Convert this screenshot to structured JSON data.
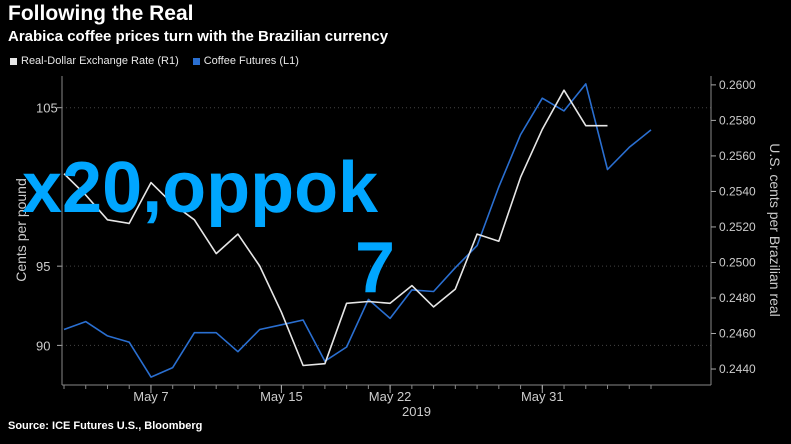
{
  "header": {
    "title": "Following the Real",
    "subtitle": "Arabica coffee prices turn with the Brazilian currency"
  },
  "legend": [
    {
      "label": "Real-Dollar Exchange Rate (R1)",
      "color": "#e6e6e6"
    },
    {
      "label": "Coffee Futures (L1)",
      "color": "#2a6fd1"
    }
  ],
  "source": "Source: ICE Futures U.S., Bloomberg",
  "overlay": {
    "line1": "x20,oppok",
    "line2": "7"
  },
  "chart_data": {
    "type": "line",
    "x": [
      1,
      2,
      3,
      4,
      5,
      6,
      7,
      8,
      9,
      10,
      11,
      12,
      13,
      14,
      15,
      16,
      17,
      18,
      19,
      20,
      21,
      22,
      23,
      24,
      25,
      26,
      27,
      28
    ],
    "x_tick_labels": [
      "May 7",
      "May 15",
      "May 22",
      "May 31"
    ],
    "x_tick_positions": [
      5,
      11,
      16,
      23
    ],
    "x_axis_sublabel": "2019",
    "left_axis": {
      "label": "Cents per pound",
      "ylim": [
        87.5,
        107
      ],
      "ticks": [
        90,
        95,
        105
      ]
    },
    "right_axis": {
      "label": "U.S. cents per Brazilian real",
      "ylim": [
        0.2431,
        0.2605
      ],
      "ticks": [
        "0.2440",
        "0.2460",
        "0.2480",
        "0.2500",
        "0.2520",
        "0.2540",
        "0.2560",
        "0.2580",
        "0.2600"
      ],
      "tick_values": [
        0.244,
        0.246,
        0.248,
        0.25,
        0.252,
        0.254,
        0.256,
        0.258,
        0.26
      ]
    },
    "series": [
      {
        "name": "Coffee Futures (L1)",
        "axis": "left",
        "color": "#2a6fd1",
        "values": [
          91.0,
          91.5,
          90.6,
          90.2,
          88.0,
          88.6,
          90.8,
          90.8,
          89.6,
          91.0,
          91.3,
          91.6,
          89.0,
          89.9,
          92.9,
          91.7,
          93.5,
          93.4,
          94.9,
          96.3,
          100.0,
          103.3,
          105.6,
          104.8,
          106.5,
          101.1,
          102.5,
          103.6
        ],
        "note": "values read approximately from gridlines"
      },
      {
        "name": "Real-Dollar Exchange Rate (R1)",
        "axis": "right",
        "color": "#e6e6e6",
        "values": [
          0.255,
          0.2538,
          0.2524,
          0.2522,
          0.2545,
          0.2533,
          0.2524,
          0.2505,
          0.2516,
          0.2498,
          0.2472,
          0.2442,
          0.2443,
          0.2477,
          0.2478,
          0.2477,
          0.2487,
          0.2475,
          0.2485,
          0.2516,
          0.2512,
          0.2548,
          0.2575,
          0.2597,
          0.2577,
          0.2577
        ],
        "x": [
          1,
          2,
          3,
          4,
          5,
          6,
          7,
          8,
          9,
          10,
          11,
          12,
          13,
          14,
          15,
          16,
          17,
          18,
          19,
          20,
          21,
          22,
          23,
          24,
          25,
          26
        ],
        "note": "values read approximately from gridlines"
      }
    ]
  }
}
